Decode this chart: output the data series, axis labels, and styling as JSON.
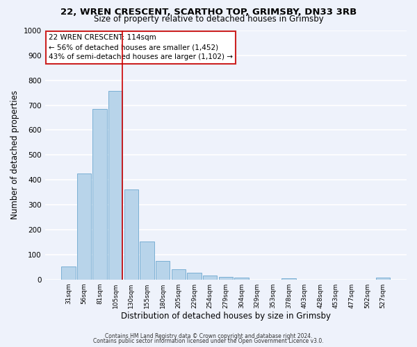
{
  "title1": "22, WREN CRESCENT, SCARTHO TOP, GRIMSBY, DN33 3RB",
  "title2": "Size of property relative to detached houses in Grimsby",
  "xlabel": "Distribution of detached houses by size in Grimsby",
  "ylabel": "Number of detached properties",
  "categories": [
    "31sqm",
    "56sqm",
    "81sqm",
    "105sqm",
    "130sqm",
    "155sqm",
    "180sqm",
    "205sqm",
    "229sqm",
    "254sqm",
    "279sqm",
    "304sqm",
    "329sqm",
    "353sqm",
    "378sqm",
    "403sqm",
    "428sqm",
    "453sqm",
    "477sqm",
    "502sqm",
    "527sqm"
  ],
  "values": [
    52,
    425,
    685,
    757,
    362,
    153,
    75,
    40,
    28,
    15,
    10,
    8,
    0,
    0,
    5,
    0,
    0,
    0,
    0,
    0,
    8
  ],
  "bar_color": "#b8d4ea",
  "bar_edge_color": "#7aafd4",
  "vline_color": "#cc0000",
  "vline_pos": 3.42,
  "annotation_title": "22 WREN CRESCENT: 114sqm",
  "annotation_line1": "← 56% of detached houses are smaller (1,452)",
  "annotation_line2": "43% of semi-detached houses are larger (1,102) →",
  "annotation_box_color": "#ffffff",
  "annotation_box_edge": "#cc2222",
  "footer1": "Contains HM Land Registry data © Crown copyright and database right 2024.",
  "footer2": "Contains public sector information licensed under the Open Government Licence v3.0.",
  "ylim": [
    0,
    1000
  ],
  "yticks": [
    0,
    100,
    200,
    300,
    400,
    500,
    600,
    700,
    800,
    900,
    1000
  ],
  "bg_color": "#eef2fb",
  "plot_bg_color": "#eef2fb",
  "grid_color": "#ffffff"
}
